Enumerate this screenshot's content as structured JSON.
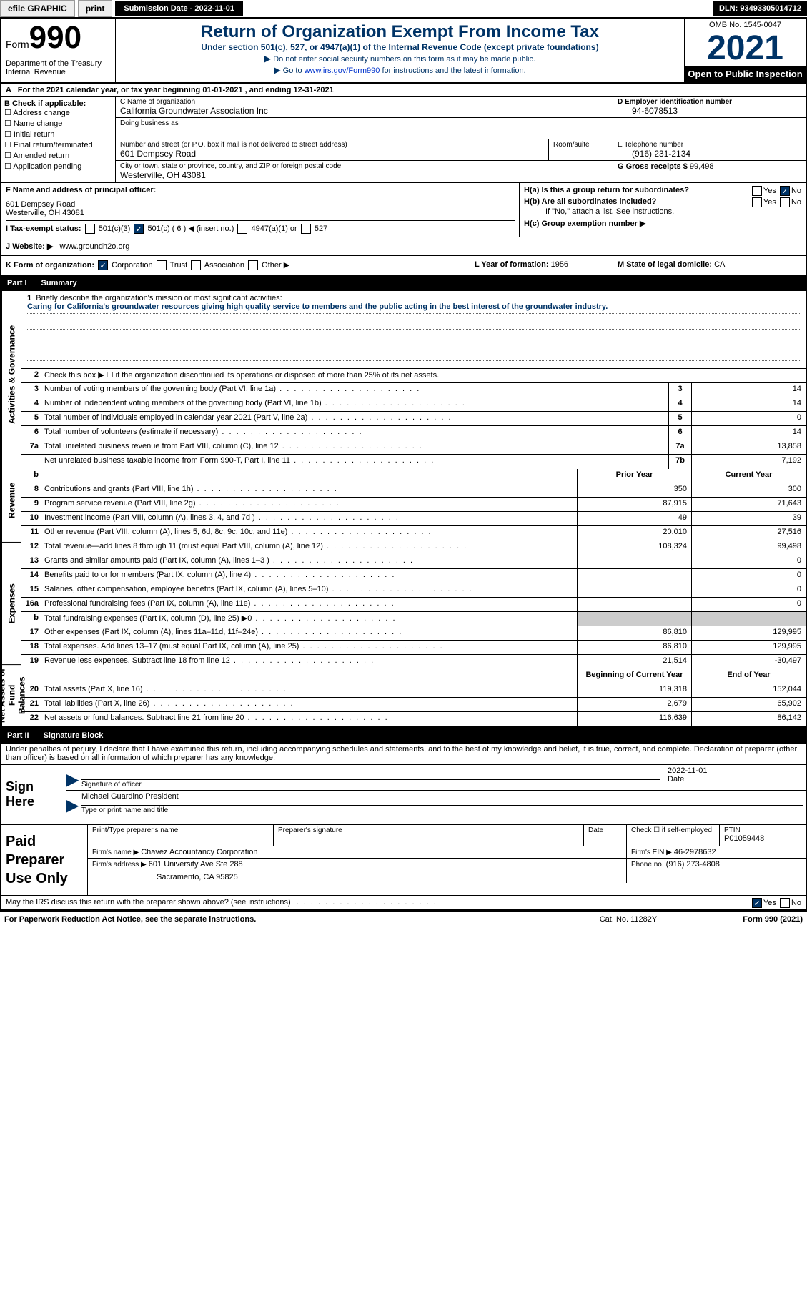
{
  "topbar": {
    "efile": "efile GRAPHIC",
    "print": "print",
    "submission": "Submission Date - 2022-11-01",
    "dln": "DLN: 93493305014712"
  },
  "header": {
    "form_label": "Form",
    "form_num": "990",
    "title": "Return of Organization Exempt From Income Tax",
    "subtitle": "Under section 501(c), 527, or 4947(a)(1) of the Internal Revenue Code (except private foundations)",
    "note1": "Do not enter social security numbers on this form as it may be made public.",
    "note2_pre": "Go to ",
    "note2_link": "www.irs.gov/Form990",
    "note2_post": " for instructions and the latest information.",
    "dept": "Department of the Treasury Internal Revenue",
    "omb": "OMB No. 1545-0047",
    "year": "2021",
    "inspect": "Open to Public Inspection"
  },
  "row_a": "For the 2021 calendar year, or tax year beginning 01-01-2021   , and ending 12-31-2021",
  "col_b": {
    "label": "B Check if applicable:",
    "items": [
      "Address change",
      "Name change",
      "Initial return",
      "Final return/terminated",
      "Amended return",
      "Application pending"
    ]
  },
  "org": {
    "c_label": "C Name of organization",
    "name": "California Groundwater Association Inc",
    "dba_label": "Doing business as",
    "street_label": "Number and street (or P.O. box if mail is not delivered to street address)",
    "room_label": "Room/suite",
    "street": "601 Dempsey Road",
    "city_label": "City or town, state or province, country, and ZIP or foreign postal code",
    "city": "Westerville, OH  43081",
    "d_label": "D Employer identification number",
    "ein": "94-6078513",
    "e_label": "E Telephone number",
    "phone": "(916) 231-2134",
    "g_label": "G Gross receipts $",
    "gross": "99,498"
  },
  "section_f": {
    "label": "F Name and address of principal officer:",
    "addr1": "601 Dempsey Road",
    "addr2": "Westerville, OH  43081"
  },
  "section_h": {
    "ha": "H(a)  Is this a group return for subordinates?",
    "hb": "H(b)  Are all subordinates included?",
    "hb_note": "If \"No,\" attach a list. See instructions.",
    "hc": "H(c)  Group exemption number ▶",
    "yes": "Yes",
    "no": "No"
  },
  "row_i": {
    "label": "I  Tax-exempt status:",
    "o1": "501(c)(3)",
    "o2": "501(c) ( 6 ) ◀ (insert no.)",
    "o3": "4947(a)(1) or",
    "o4": "527"
  },
  "row_j": {
    "label": "J  Website: ▶",
    "val": "www.groundh2o.org"
  },
  "row_k": {
    "label": "K Form of organization:",
    "o1": "Corporation",
    "o2": "Trust",
    "o3": "Association",
    "o4": "Other ▶",
    "l_label": "L Year of formation:",
    "l_val": "1956",
    "m_label": "M State of legal domicile:",
    "m_val": "CA"
  },
  "part1": {
    "header": "Part I",
    "title": "Summary",
    "line1_label": "Briefly describe the organization's mission or most significant activities:",
    "mission": "Caring for California's groundwater resources giving high quality service to members and the public acting in the best interest of the groundwater industry.",
    "line2": "Check this box ▶ ☐ if the organization discontinued its operations or disposed of more than 25% of its net assets.",
    "prior_year": "Prior Year",
    "current_year": "Current Year",
    "begin_year": "Beginning of Current Year",
    "end_year": "End of Year",
    "vtabs": {
      "act": "Activities & Governance",
      "rev": "Revenue",
      "exp": "Expenses",
      "net": "Net Assets or Fund Balances"
    },
    "lines_gov": [
      {
        "n": "3",
        "d": "Number of voting members of the governing body (Part VI, line 1a)",
        "box": "3",
        "v": "14"
      },
      {
        "n": "4",
        "d": "Number of independent voting members of the governing body (Part VI, line 1b)",
        "box": "4",
        "v": "14"
      },
      {
        "n": "5",
        "d": "Total number of individuals employed in calendar year 2021 (Part V, line 2a)",
        "box": "5",
        "v": "0"
      },
      {
        "n": "6",
        "d": "Total number of volunteers (estimate if necessary)",
        "box": "6",
        "v": "14"
      },
      {
        "n": "7a",
        "d": "Total unrelated business revenue from Part VIII, column (C), line 12",
        "box": "7a",
        "v": "13,858"
      },
      {
        "n": "",
        "d": "Net unrelated business taxable income from Form 990-T, Part I, line 11",
        "box": "7b",
        "v": "7,192"
      }
    ],
    "lines_rev": [
      {
        "n": "8",
        "d": "Contributions and grants (Part VIII, line 1h)",
        "py": "350",
        "cy": "300"
      },
      {
        "n": "9",
        "d": "Program service revenue (Part VIII, line 2g)",
        "py": "87,915",
        "cy": "71,643"
      },
      {
        "n": "10",
        "d": "Investment income (Part VIII, column (A), lines 3, 4, and 7d )",
        "py": "49",
        "cy": "39"
      },
      {
        "n": "11",
        "d": "Other revenue (Part VIII, column (A), lines 5, 6d, 8c, 9c, 10c, and 11e)",
        "py": "20,010",
        "cy": "27,516"
      },
      {
        "n": "12",
        "d": "Total revenue—add lines 8 through 11 (must equal Part VIII, column (A), line 12)",
        "py": "108,324",
        "cy": "99,498"
      }
    ],
    "lines_exp": [
      {
        "n": "13",
        "d": "Grants and similar amounts paid (Part IX, column (A), lines 1–3 )",
        "py": "",
        "cy": "0"
      },
      {
        "n": "14",
        "d": "Benefits paid to or for members (Part IX, column (A), line 4)",
        "py": "",
        "cy": "0"
      },
      {
        "n": "15",
        "d": "Salaries, other compensation, employee benefits (Part IX, column (A), lines 5–10)",
        "py": "",
        "cy": "0"
      },
      {
        "n": "16a",
        "d": "Professional fundraising fees (Part IX, column (A), line 11e)",
        "py": "",
        "cy": "0"
      },
      {
        "n": "b",
        "d": "Total fundraising expenses (Part IX, column (D), line 25) ▶0",
        "py": "SHADE",
        "cy": "SHADE"
      },
      {
        "n": "17",
        "d": "Other expenses (Part IX, column (A), lines 11a–11d, 11f–24e)",
        "py": "86,810",
        "cy": "129,995"
      },
      {
        "n": "18",
        "d": "Total expenses. Add lines 13–17 (must equal Part IX, column (A), line 25)",
        "py": "86,810",
        "cy": "129,995"
      },
      {
        "n": "19",
        "d": "Revenue less expenses. Subtract line 18 from line 12",
        "py": "21,514",
        "cy": "-30,497"
      }
    ],
    "lines_net": [
      {
        "n": "20",
        "d": "Total assets (Part X, line 16)",
        "py": "119,318",
        "cy": "152,044"
      },
      {
        "n": "21",
        "d": "Total liabilities (Part X, line 26)",
        "py": "2,679",
        "cy": "65,902"
      },
      {
        "n": "22",
        "d": "Net assets or fund balances. Subtract line 21 from line 20",
        "py": "116,639",
        "cy": "86,142"
      }
    ]
  },
  "part2": {
    "header": "Part II",
    "title": "Signature Block",
    "intro": "Under penalties of perjury, I declare that I have examined this return, including accompanying schedules and statements, and to the best of my knowledge and belief, it is true, correct, and complete. Declaration of preparer (other than officer) is based on all information of which preparer has any knowledge.",
    "sign_here": "Sign Here",
    "sig_officer": "Signature of officer",
    "sig_date_val": "2022-11-01",
    "date_label": "Date",
    "officer_name": "Michael Guardino  President",
    "officer_label": "Type or print name and title",
    "paid_label": "Paid Preparer Use Only",
    "prep_name_label": "Print/Type preparer's name",
    "prep_sig_label": "Preparer's signature",
    "check_self": "Check ☐ if self-employed",
    "ptin_label": "PTIN",
    "ptin": "P01059448",
    "firm_name_label": "Firm's name   ▶",
    "firm_name": "Chavez Accountancy Corporation",
    "firm_ein_label": "Firm's EIN ▶",
    "firm_ein": "46-2978632",
    "firm_addr_label": "Firm's address ▶",
    "firm_addr1": "601 University Ave Ste 288",
    "firm_addr2": "Sacramento, CA  95825",
    "phone_label": "Phone no.",
    "phone": "(916) 273-4808"
  },
  "footer": {
    "discuss": "May the IRS discuss this return with the preparer shown above? (see instructions)",
    "yes": "Yes",
    "no": "No",
    "paperwork": "For Paperwork Reduction Act Notice, see the separate instructions.",
    "cat": "Cat. No. 11282Y",
    "form": "Form 990 (2021)"
  }
}
